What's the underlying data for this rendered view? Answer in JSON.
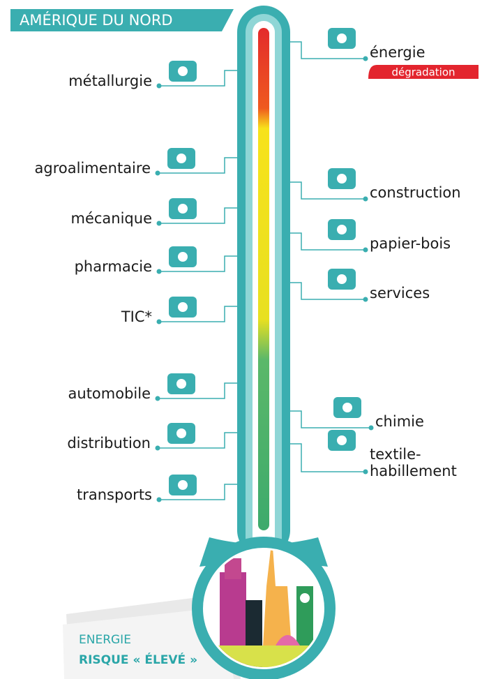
{
  "header": {
    "title": "AMÉRIQUE DU NORD"
  },
  "sectors_left": [
    "métallurgie",
    "agroalimentaire",
    "mécanique",
    "pharmacie",
    "TIC*",
    "automobile",
    "distribution",
    "transports"
  ],
  "sectors_right": [
    {
      "label": "énergie",
      "badge": "dégradation"
    },
    {
      "label": "construction"
    },
    {
      "label": "papier-bois"
    },
    {
      "label": "services"
    },
    {
      "label": "chimie"
    },
    {
      "lines": [
        "textile-",
        "habillement"
      ]
    }
  ],
  "note": {
    "line1": "ENERGIE",
    "line2": "RISQUE « ÉLEVÉ »"
  }
}
